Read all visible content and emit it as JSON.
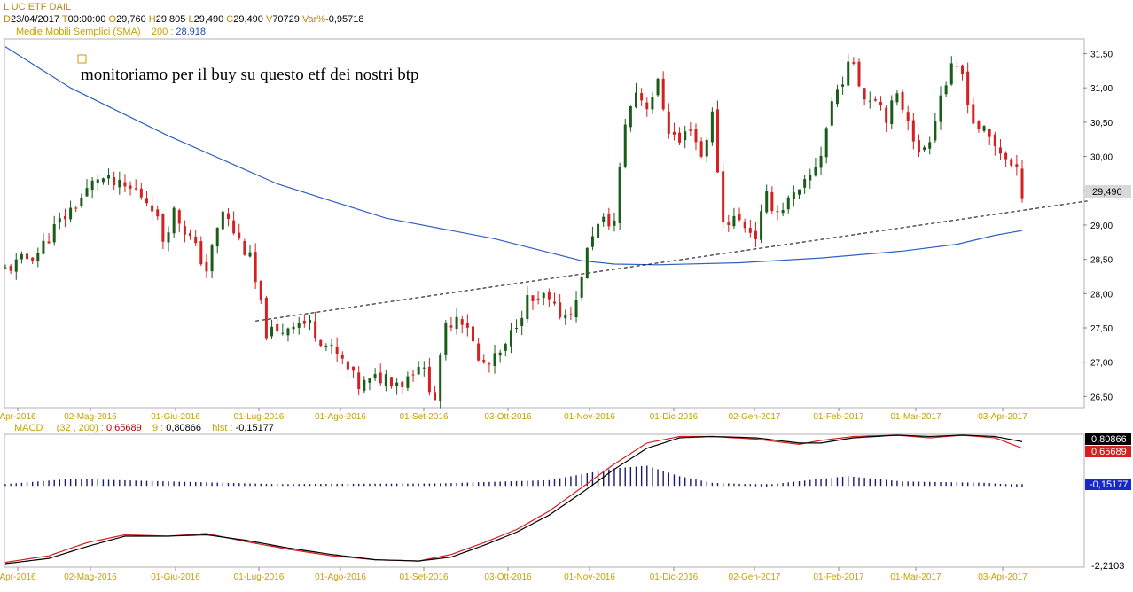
{
  "header": {
    "title": "L UC ETF DAIL",
    "d_label": "D",
    "d_value": "23/04/2017",
    "t_label": "T",
    "t_value": "00:00:00",
    "o_label": "O",
    "o_value": "29,760",
    "h_label": "H",
    "h_value": "29,805",
    "l_label": "L",
    "l_value": "29,490",
    "c_label": "C",
    "c_value": "29,490",
    "v_label": "V",
    "v_value": "70729",
    "var_label": "Var%",
    "var_value": "-0,95718",
    "sma_label": "Medie Mobili Semplici (SMA)",
    "sma_period": "200",
    "sma_sep": ":",
    "sma_value": "28,918"
  },
  "macd_header": {
    "label": "MACD",
    "params": "(32 , 200)",
    "sep1": ":",
    "macd_value": "0,65689",
    "signal_period": "9",
    "sep2": ":",
    "signal_value": "0,80866",
    "hist_label": "hist",
    "sep3": ":",
    "hist_value": "-0,15177"
  },
  "annotation": "monitoriamo per il buy su questo etf dei nostri btp",
  "colors": {
    "up_candle": "#1a5c1a",
    "down_candle": "#d42020",
    "sma_line": "#3060c0",
    "macd_line": "#d42020",
    "signal_line": "#000000",
    "hist_bar": "#1a1a70",
    "axis_label": "#c8a000"
  },
  "chart_data": [
    {
      "type": "candlestick",
      "title": "L UC ETF DAIL",
      "x_labels": [
        "Apr-2016",
        "02-Mag-2016",
        "01-Giu-2016",
        "01-Lug-2016",
        "01-Ago-2016",
        "01-Set-2016",
        "03-Ott-2016",
        "01-Nov-2016",
        "01-Dic-2016",
        "02-Gen-2017",
        "01-Feb-2017",
        "01-Mar-2017",
        "03-Apr-2017"
      ],
      "y_ticks": [
        26.5,
        27.0,
        27.5,
        28.0,
        28.5,
        29.0,
        29.5,
        30.0,
        30.5,
        31.0,
        31.5
      ],
      "y_tick_labels": [
        "26,50",
        "27,00",
        "27,50",
        "28,00",
        "28,50",
        "29,00",
        "29,50",
        "30,00",
        "30,50",
        "31,00",
        "31,50"
      ],
      "ylim": [
        26.35,
        31.7
      ],
      "last_price_label": "29,490",
      "last_price": 29.49,
      "close_path": [
        [
          0,
          28.35
        ],
        [
          6,
          28.6
        ],
        [
          9,
          28.95
        ],
        [
          14,
          29.4
        ],
        [
          17,
          29.7
        ],
        [
          21,
          29.55
        ],
        [
          24,
          29.5
        ],
        [
          27,
          29.3
        ],
        [
          29,
          28.8
        ],
        [
          31,
          29.2
        ],
        [
          34,
          28.8
        ],
        [
          37,
          28.35
        ],
        [
          40,
          29.2
        ],
        [
          42,
          28.9
        ],
        [
          45,
          28.5
        ],
        [
          48,
          27.45
        ],
        [
          50,
          27.4
        ],
        [
          53,
          27.6
        ],
        [
          56,
          27.55
        ],
        [
          59,
          27.25
        ],
        [
          62,
          27.0
        ],
        [
          65,
          26.65
        ],
        [
          68,
          26.75
        ],
        [
          70,
          26.8
        ],
        [
          73,
          26.7
        ],
        [
          76,
          27.0
        ],
        [
          79,
          26.5
        ],
        [
          81,
          27.5
        ],
        [
          83,
          27.7
        ],
        [
          85,
          27.55
        ],
        [
          87,
          27.0
        ],
        [
          89,
          26.95
        ],
        [
          92,
          27.2
        ],
        [
          94,
          27.6
        ],
        [
          96,
          27.9
        ],
        [
          98,
          27.85
        ],
        [
          99,
          27.95
        ],
        [
          101,
          27.75
        ],
        [
          103,
          27.7
        ],
        [
          105,
          27.85
        ],
        [
          106,
          28.3
        ],
        [
          108,
          28.9
        ],
        [
          110,
          29.05
        ],
        [
          112,
          29.05
        ],
        [
          114,
          30.5
        ],
        [
          116,
          30.95
        ],
        [
          118,
          30.75
        ],
        [
          120,
          31.05
        ],
        [
          122,
          30.4
        ],
        [
          124,
          30.2
        ],
        [
          126,
          30.45
        ],
        [
          128,
          30.0
        ],
        [
          130,
          30.6
        ],
        [
          132,
          29.05
        ],
        [
          134,
          29.1
        ],
        [
          136,
          29.0
        ],
        [
          138,
          28.85
        ],
        [
          140,
          29.4
        ],
        [
          142,
          29.2
        ],
        [
          144,
          29.35
        ],
        [
          146,
          29.45
        ],
        [
          148,
          29.7
        ],
        [
          150,
          30.05
        ],
        [
          152,
          30.8
        ],
        [
          154,
          31.15
        ],
        [
          156,
          31.4
        ],
        [
          158,
          30.85
        ],
        [
          160,
          30.9
        ],
        [
          162,
          30.6
        ],
        [
          164,
          30.85
        ],
        [
          166,
          30.6
        ],
        [
          168,
          30.0
        ],
        [
          170,
          30.3
        ],
        [
          172,
          30.9
        ],
        [
          174,
          31.25
        ],
        [
          176,
          31.2
        ],
        [
          178,
          30.5
        ],
        [
          180,
          30.35
        ],
        [
          182,
          30.15
        ],
        [
          184,
          30.0
        ],
        [
          185,
          29.85
        ],
        [
          186,
          29.75
        ],
        [
          187,
          29.49
        ]
      ],
      "n_bars": 188,
      "sma200": [
        [
          0,
          31.6
        ],
        [
          12,
          31.0
        ],
        [
          30,
          30.3
        ],
        [
          50,
          29.6
        ],
        [
          70,
          29.1
        ],
        [
          90,
          28.8
        ],
        [
          100,
          28.6
        ],
        [
          106,
          28.48
        ],
        [
          112,
          28.43
        ],
        [
          120,
          28.42
        ],
        [
          135,
          28.45
        ],
        [
          150,
          28.52
        ],
        [
          165,
          28.62
        ],
        [
          175,
          28.72
        ],
        [
          182,
          28.85
        ],
        [
          187,
          28.92
        ]
      ],
      "trendline": [
        [
          46,
          27.6
        ],
        [
          199,
          29.35
        ]
      ]
    },
    {
      "type": "line",
      "title": "MACD",
      "series": [
        {
          "name": "MACD (32 , 200)",
          "values": [
            [
              0,
              0.03
            ],
            [
              8,
              0.08
            ],
            [
              15,
              0.18
            ],
            [
              22,
              0.24
            ],
            [
              30,
              0.23
            ],
            [
              37,
              0.25
            ],
            [
              44,
              0.19
            ],
            [
              52,
              0.13
            ],
            [
              60,
              0.08
            ],
            [
              68,
              0.05
            ],
            [
              76,
              0.04
            ],
            [
              82,
              0.09
            ],
            [
              88,
              0.18
            ],
            [
              94,
              0.28
            ],
            [
              100,
              0.42
            ],
            [
              106,
              0.6
            ],
            [
              112,
              0.78
            ],
            [
              118,
              0.94
            ],
            [
              124,
              0.99
            ],
            [
              130,
              0.99
            ],
            [
              138,
              0.97
            ],
            [
              146,
              0.93
            ],
            [
              150,
              0.96
            ],
            [
              156,
              0.99
            ],
            [
              164,
              1.0
            ],
            [
              170,
              0.98
            ],
            [
              176,
              1.0
            ],
            [
              182,
              0.98
            ],
            [
              187,
              0.9
            ]
          ]
        },
        {
          "name": "Signal 9",
          "values": [
            [
              0,
              0.02
            ],
            [
              8,
              0.06
            ],
            [
              15,
              0.15
            ],
            [
              22,
              0.23
            ],
            [
              30,
              0.23
            ],
            [
              37,
              0.24
            ],
            [
              44,
              0.2
            ],
            [
              52,
              0.14
            ],
            [
              60,
              0.09
            ],
            [
              68,
              0.05
            ],
            [
              76,
              0.04
            ],
            [
              82,
              0.07
            ],
            [
              88,
              0.16
            ],
            [
              94,
              0.26
            ],
            [
              100,
              0.39
            ],
            [
              106,
              0.56
            ],
            [
              112,
              0.74
            ],
            [
              118,
              0.9
            ],
            [
              124,
              0.98
            ],
            [
              130,
              0.99
            ],
            [
              138,
              0.98
            ],
            [
              146,
              0.94
            ],
            [
              150,
              0.94
            ],
            [
              156,
              0.98
            ],
            [
              164,
              1.0
            ],
            [
              170,
              0.99
            ],
            [
              176,
              1.0
            ],
            [
              182,
              0.99
            ],
            [
              187,
              0.95
            ]
          ]
        }
      ],
      "histogram": [
        [
          0,
          0.62
        ],
        [
          12,
          0.66
        ],
        [
          30,
          0.64
        ],
        [
          50,
          0.62
        ],
        [
          80,
          0.625
        ],
        [
          100,
          0.65
        ],
        [
          112,
          0.74
        ],
        [
          118,
          0.76
        ],
        [
          124,
          0.68
        ],
        [
          130,
          0.63
        ],
        [
          140,
          0.615
        ],
        [
          150,
          0.66
        ],
        [
          155,
          0.68
        ],
        [
          165,
          0.64
        ],
        [
          180,
          0.63
        ],
        [
          187,
          0.61
        ]
      ],
      "y_tick_labels": [
        "-2,2103"
      ],
      "macd_value_label": "0,65689",
      "signal_value_label": "0,80866",
      "hist_value_label": "-0,15177"
    }
  ]
}
